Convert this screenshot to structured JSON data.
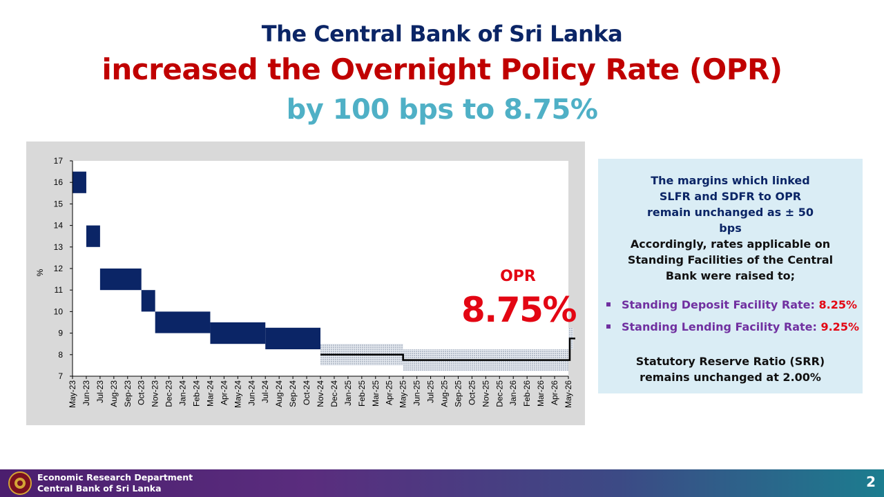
{
  "header": {
    "line1": "The Central Bank of Sri Lanka",
    "line2": "increased the Overnight Policy Rate (OPR)",
    "line3": "by 100 bps to 8.75%"
  },
  "chart_data": {
    "type": "line",
    "title": "",
    "xlabel": "",
    "ylabel": "%",
    "ylim": [
      7,
      17
    ],
    "yticks": [
      7,
      8,
      9,
      10,
      11,
      12,
      13,
      14,
      15,
      16,
      17
    ],
    "categories": [
      "May-23",
      "Jun-23",
      "Jul-23",
      "Aug-23",
      "Sep-23",
      "Oct-23",
      "Nov-23",
      "Dec-23",
      "Jan-24",
      "Feb-24",
      "Mar-24",
      "Apr-24",
      "May-24",
      "Jun-24",
      "Jul-24",
      "Aug-24",
      "Sep-24",
      "Oct-24",
      "Nov-24",
      "Dec-24",
      "Jan-25",
      "Feb-25",
      "Mar-25",
      "Apr-25",
      "May-25",
      "Jun-25",
      "Jul-25",
      "Aug-25",
      "Sep-25",
      "Oct-25",
      "Nov-25",
      "Dec-25",
      "Jan-26",
      "Feb-26",
      "Mar-26",
      "Apr-26",
      "May-26"
    ],
    "corridor_segments": [
      {
        "start": "May-23",
        "end": "Jun-23",
        "sdfr": 15.5,
        "slfr": 16.5
      },
      {
        "start": "Jun-23",
        "end": "Jul-23",
        "sdfr": 13.0,
        "slfr": 14.0
      },
      {
        "start": "Jul-23",
        "end": "Oct-23",
        "sdfr": 11.0,
        "slfr": 12.0
      },
      {
        "start": "Oct-23",
        "end": "Nov-23",
        "sdfr": 10.0,
        "slfr": 11.0
      },
      {
        "start": "Nov-23",
        "end": "Mar-24",
        "sdfr": 9.0,
        "slfr": 10.0
      },
      {
        "start": "Mar-24",
        "end": "Jul-24",
        "sdfr": 8.5,
        "slfr": 9.5
      },
      {
        "start": "Jul-24",
        "end": "Nov-24",
        "sdfr": 8.25,
        "slfr": 9.25
      }
    ],
    "series": [
      {
        "points": [
          {
            "x": "Nov-24",
            "y": 8.0
          },
          {
            "x": "May-25",
            "y": 8.0
          },
          {
            "x": "May-25",
            "y": 7.75
          },
          {
            "x": "May-26",
            "y": 7.75
          },
          {
            "x": "May-26",
            "y": 8.75
          }
        ]
      }
    ],
    "opr_bands": [
      {
        "start": "Nov-24",
        "end": "May-25",
        "low": 7.5,
        "high": 8.5
      },
      {
        "start": "May-25",
        "end": "May-26",
        "low": 7.25,
        "high": 8.25
      },
      {
        "start": "May-26",
        "end": "May-26",
        "low": 8.25,
        "high": 9.25
      }
    ],
    "colors": {
      "corridor": "#0b2566",
      "opr_line": "#000000",
      "band": "#b4bfcf"
    }
  },
  "annotation": {
    "label": "OPR",
    "value": "8.75%"
  },
  "info": {
    "margins": "The margins which linked SLFR and SDFR to OPR remain unchanged as ± 50 bps",
    "accordingly": "Accordingly, rates applicable on Standing Facilities of the Central Bank were raised to;",
    "sdfr_label": "Standing Deposit Facility Rate: ",
    "sdfr_value": "8.25%",
    "slfr_label": "Standing Lending Facility Rate: ",
    "slfr_value": "9.25%",
    "srr": "Statutory Reserve Ratio (SRR) remains unchanged at 2.00%"
  },
  "footer": {
    "dept": "Economic Research Department",
    "bank": "Central Bank of Sri Lanka",
    "page": "2"
  }
}
